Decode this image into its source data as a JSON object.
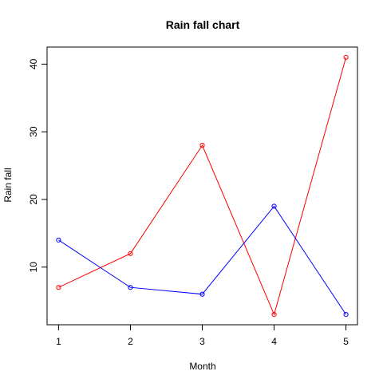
{
  "chart_data": {
    "type": "line",
    "title": "Rain fall chart",
    "xlabel": "Month",
    "ylabel": "Rain fall",
    "x": [
      1,
      2,
      3,
      4,
      5
    ],
    "xlim": [
      0.84,
      5.16
    ],
    "ylim": [
      1.48,
      42.52
    ],
    "x_ticks": [
      1,
      2,
      3,
      4,
      5
    ],
    "y_ticks": [
      10,
      20,
      30,
      40
    ],
    "grid": false,
    "series": [
      {
        "color": "#ff0000",
        "marker": "open-circle",
        "values": [
          7,
          12,
          28,
          3,
          41
        ]
      },
      {
        "color": "#0000ff",
        "marker": "open-circle",
        "values": [
          14,
          7,
          6,
          19,
          3
        ]
      }
    ]
  }
}
